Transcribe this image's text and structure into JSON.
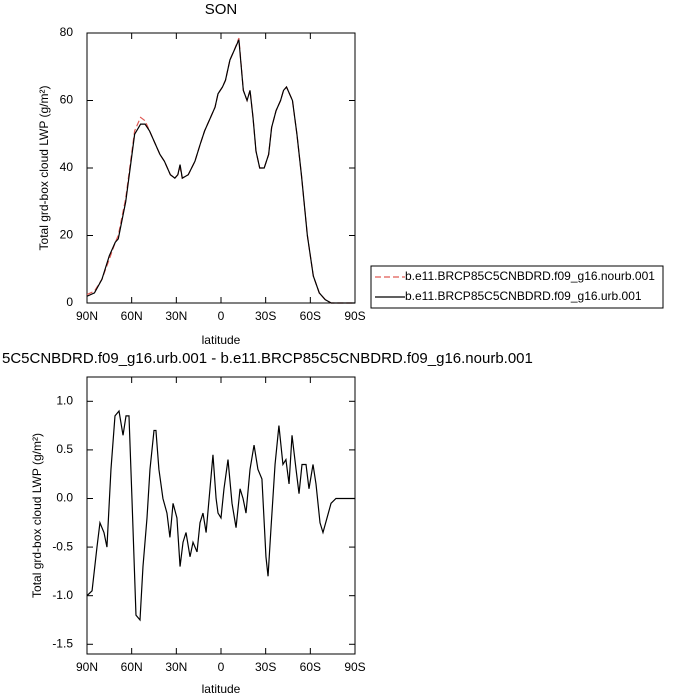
{
  "chart_data": [
    {
      "type": "line",
      "title": "SON",
      "x_label": "latitude",
      "y_label": "Total grd-box cloud LWP (g/m²)",
      "x": [
        90,
        85,
        80,
        75,
        71,
        69,
        64,
        61,
        58,
        54,
        51,
        48,
        44,
        41,
        38,
        34,
        31,
        29,
        27.5,
        26,
        22,
        17.5,
        14,
        11,
        7,
        4,
        2,
        -1,
        -3,
        -6,
        -9,
        -12,
        -15,
        -17.5,
        -19.5,
        -21.5,
        -23.5,
        -26,
        -29,
        -32,
        -34,
        -37,
        -40,
        -42,
        -44,
        -48,
        -51,
        -54,
        -58,
        -62,
        -66,
        -70,
        -74,
        -90
      ],
      "series": [
        {
          "name": "b.e11.BRCP85C5CNBDRD.f09_g16.nourb.001",
          "color": "#e05a55",
          "dashed": true,
          "values": [
            2.5,
            3.5,
            7,
            13,
            18,
            20,
            31,
            41,
            51,
            55,
            54,
            51,
            47,
            44,
            42,
            38,
            37,
            38,
            40,
            37,
            38,
            42,
            47,
            51,
            55,
            58,
            62,
            64,
            66,
            72,
            75,
            78.5,
            63,
            60,
            63,
            55,
            45,
            40,
            40,
            44,
            52,
            57,
            60,
            63,
            64,
            60,
            50,
            38,
            20,
            8,
            3,
            1,
            0,
            0
          ]
        },
        {
          "name": "b.e11.BRCP85C5CNBDRD.f09_g16.urb.001",
          "color": "#000000",
          "dashed": false,
          "values": [
            2,
            3,
            7,
            14,
            18,
            19,
            30,
            40,
            50,
            53,
            53,
            51,
            47,
            44,
            42,
            38,
            37,
            38,
            41,
            37,
            38,
            42,
            47,
            51,
            55,
            58,
            62,
            64,
            66,
            72,
            75,
            78,
            63,
            60,
            63,
            55,
            45,
            40,
            40,
            44,
            52,
            57,
            60,
            63,
            64,
            60,
            50,
            38,
            20,
            8,
            3,
            1,
            0,
            0
          ]
        }
      ],
      "xlim": [
        90,
        -90
      ],
      "xticks": [
        {
          "value": 90,
          "label": "90N"
        },
        {
          "value": 60,
          "label": "60N"
        },
        {
          "value": 30,
          "label": "30N"
        },
        0,
        {
          "value": -30,
          "label": "30S"
        },
        {
          "value": -60,
          "label": "60S"
        },
        {
          "value": -90,
          "label": "90S"
        }
      ],
      "ylim": [
        0,
        80
      ],
      "yticks": [
        0,
        20,
        40,
        60,
        80
      ],
      "legend": "right"
    },
    {
      "type": "line",
      "title": "5C5CNBDRD.f09_g16.urb.001 - b.e11.BRCP85C5CNBDRD.f09_g16.nourb.001",
      "x_label": "latitude",
      "y_label": "Total grd-box cloud LWP (g/m²)",
      "x": [
        90,
        86.6,
        83.3,
        81.3,
        78.6,
        76.6,
        73.9,
        71.2,
        68.5,
        65.8,
        63.8,
        61.8,
        59.8,
        57.1,
        54.4,
        52.4,
        49.7,
        47.7,
        45,
        43.7,
        41.7,
        39,
        36.3,
        34.3,
        32.2,
        29.6,
        27.5,
        25.5,
        23.5,
        20.8,
        18.8,
        16.1,
        14.1,
        12.1,
        10,
        7.4,
        5.4,
        3.3,
        2,
        0,
        -2,
        -4.7,
        -7.4,
        -10.1,
        -12.8,
        -14.8,
        -16.8,
        -19.5,
        -22.2,
        -24.8,
        -27.5,
        -30.2,
        -31.6,
        -33.6,
        -36.3,
        -38.9,
        -41.6,
        -43.6,
        -45.7,
        -47.7,
        -50.4,
        -52.4,
        -54.4,
        -57.1,
        -59.1,
        -61.8,
        -63.8,
        -66.5,
        -68.5,
        -71.2,
        -73.9,
        -77.2,
        -83.3,
        -90
      ],
      "series": [
        {
          "color": "#000000",
          "dashed": false,
          "values": [
            -1.0,
            -0.95,
            -0.5,
            -0.25,
            -0.35,
            -0.5,
            0.3,
            0.85,
            0.9,
            0.65,
            0.85,
            0.85,
            0,
            -1.2,
            -1.25,
            -0.7,
            -0.2,
            0.3,
            0.7,
            0.7,
            0.3,
            0,
            -0.15,
            -0.4,
            -0.05,
            -0.2,
            -0.7,
            -0.45,
            -0.35,
            -0.6,
            -0.45,
            -0.55,
            -0.25,
            -0.15,
            -0.35,
            0.1,
            0.45,
            0,
            -0.15,
            -0.2,
            0.1,
            0.4,
            -0.05,
            -0.3,
            0.1,
            0,
            -0.15,
            0.3,
            0.55,
            0.3,
            0.2,
            -0.6,
            -0.8,
            -0.3,
            0.35,
            0.75,
            0.35,
            0.4,
            0.15,
            0.65,
            0.3,
            0.05,
            0.35,
            0.35,
            0.1,
            0.35,
            0.15,
            -0.25,
            -0.35,
            -0.2,
            -0.05,
            0,
            0,
            0
          ]
        }
      ],
      "xlim": [
        90,
        -90
      ],
      "xticks": [
        {
          "value": 90,
          "label": "90N"
        },
        {
          "value": 60,
          "label": "60N"
        },
        {
          "value": 30,
          "label": "30N"
        },
        0,
        {
          "value": -30,
          "label": "30S"
        },
        {
          "value": -60,
          "label": "60S"
        },
        {
          "value": -90,
          "label": "90S"
        }
      ],
      "ylim": [
        -1.6,
        1.25
      ],
      "yticks": [
        {
          "value": 1,
          "label": "1.0"
        },
        {
          "value": 0.5,
          "label": "0.5"
        },
        {
          "value": 0,
          "label": "0.0"
        },
        {
          "value": -0.5,
          "label": "-0.5"
        },
        {
          "value": -1,
          "label": "-1.0"
        },
        {
          "value": -1.5,
          "label": "-1.5"
        }
      ]
    }
  ]
}
